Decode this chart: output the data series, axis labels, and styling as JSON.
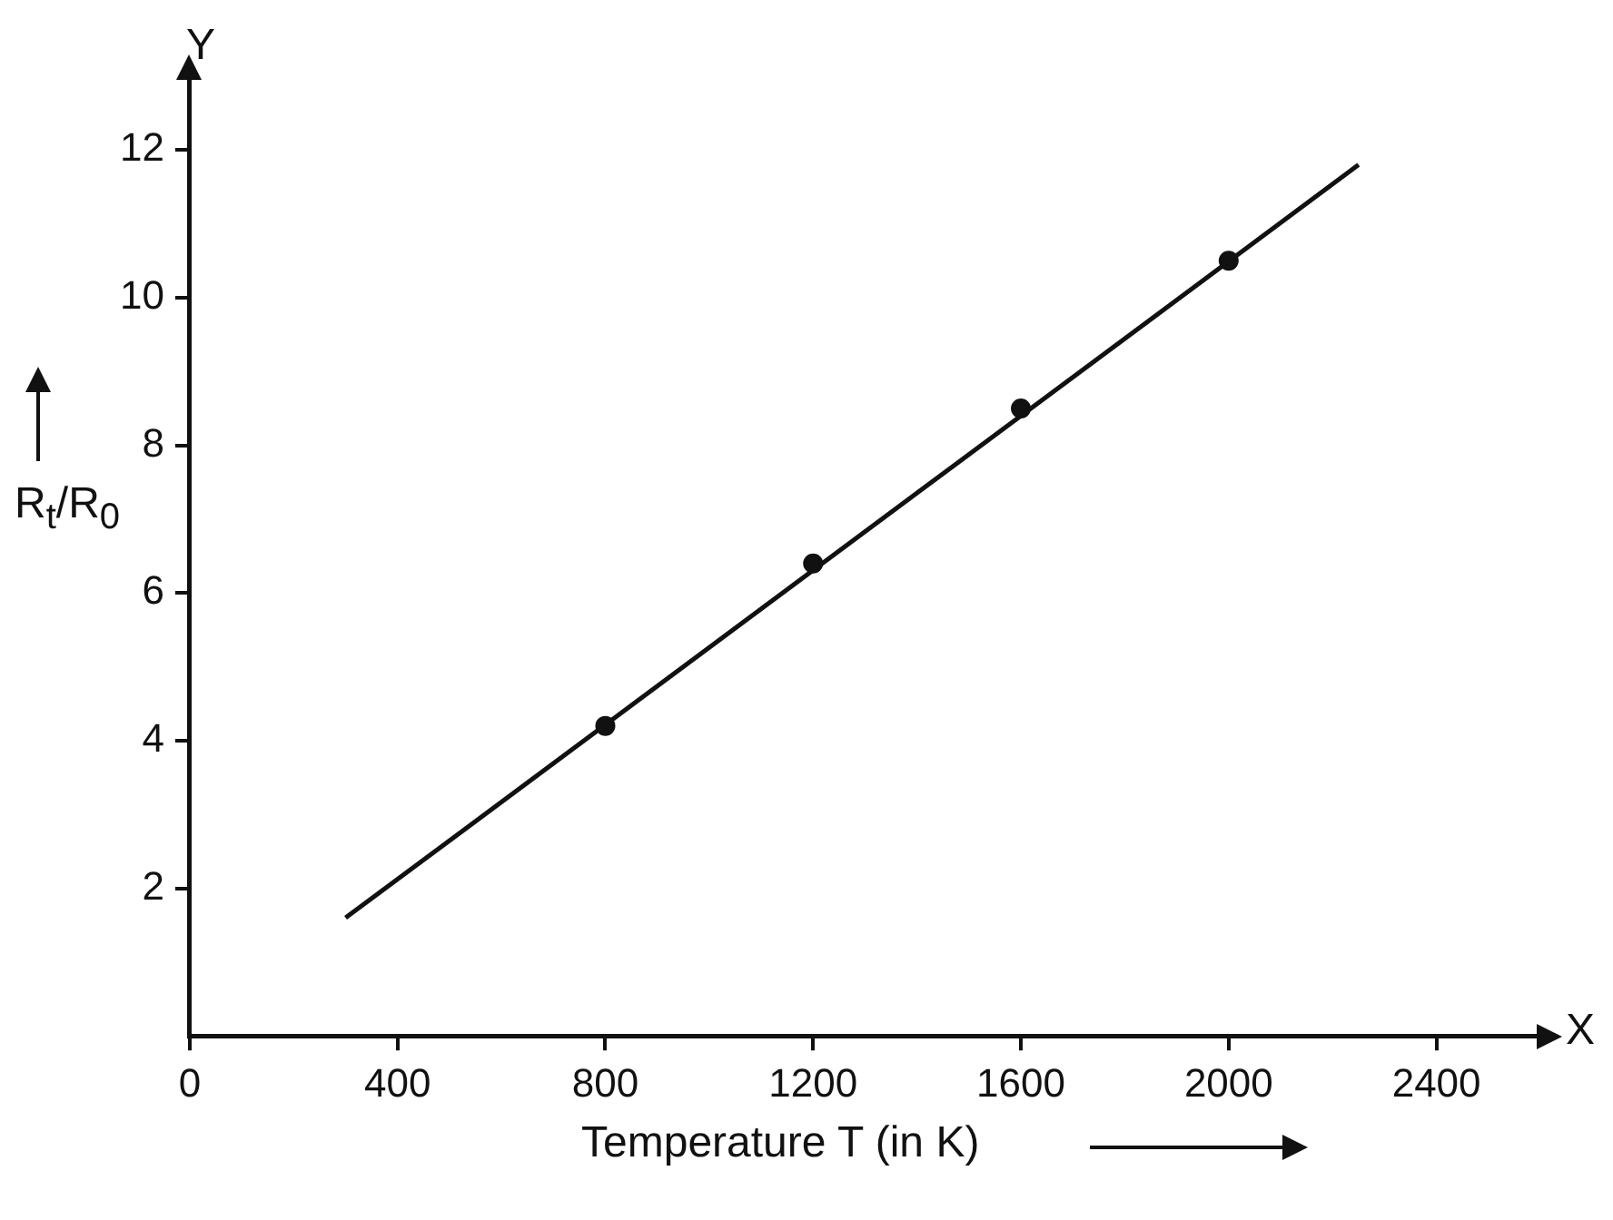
{
  "chart_data": {
    "type": "line",
    "xlabel": "Temperature T (in K)",
    "ylabel": "R$_{t}$/R$_{0}$",
    "annotations": [
      "Y",
      "X"
    ],
    "series": [
      {
        "type": "line",
        "x": [
          300,
          2250
        ],
        "values": [
          1.6,
          11.8
        ],
        "color": "#111111",
        "marker": "none"
      },
      {
        "type": "scatter",
        "x": [
          800,
          1200,
          1600,
          2000
        ],
        "values": [
          4.2,
          6.4,
          8.5,
          10.5
        ],
        "color": "#111111",
        "marker": "circle"
      }
    ],
    "xlim": [
      0,
      2600
    ],
    "xticks": [
      0,
      400,
      800,
      1200,
      1600,
      2000,
      2400
    ],
    "ylim": [
      0,
      13
    ],
    "yticks": [
      2,
      4,
      6,
      8,
      10,
      12
    ],
    "grid": false,
    "legend": false
  }
}
